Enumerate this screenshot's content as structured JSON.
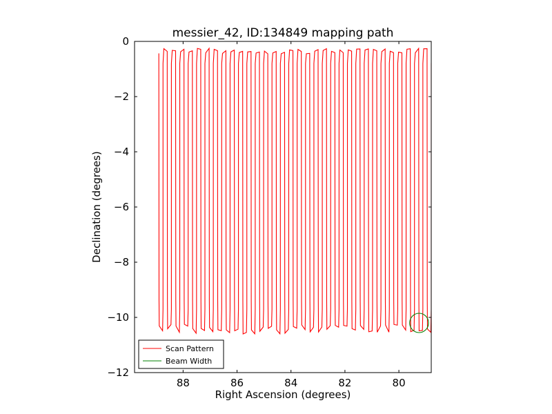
{
  "chart_data": {
    "type": "line",
    "title": "messier_42, ID:134849 mapping path",
    "xlabel": "Right Ascension (degrees)",
    "ylabel": "Declination (degrees)",
    "xlim": [
      89.8,
      78.8
    ],
    "ylim": [
      -12,
      0
    ],
    "x_inverted": true,
    "grid": false,
    "x_ticks": [
      88,
      86,
      84,
      82,
      80
    ],
    "x_tick_labels": [
      "88",
      "86",
      "84",
      "82",
      "80"
    ],
    "y_ticks": [
      0,
      -2,
      -4,
      -6,
      -8,
      -10,
      -12
    ],
    "y_tick_labels": [
      "0",
      "−2",
      "−4",
      "−6",
      "−8",
      "−10",
      "−12"
    ],
    "legend": {
      "placement": "lower-left",
      "entries": [
        {
          "label": "Scan Pattern",
          "color": "#ff0000"
        },
        {
          "label": "Beam Width",
          "color": "#008000"
        }
      ]
    },
    "series": [
      {
        "name": "Scan Pattern",
        "color": "#ff0000",
        "pattern": "raster",
        "ra_start": 88.9,
        "ra_end": 78.8,
        "legs": 66,
        "dec_top": [
          -0.25,
          -0.45
        ],
        "dec_bottom": [
          -10.25,
          -10.6
        ]
      },
      {
        "name": "Beam Width",
        "color": "#008000",
        "shape": "circle",
        "center": [
          79.25,
          -10.2
        ],
        "radius_deg": 0.35
      }
    ]
  }
}
